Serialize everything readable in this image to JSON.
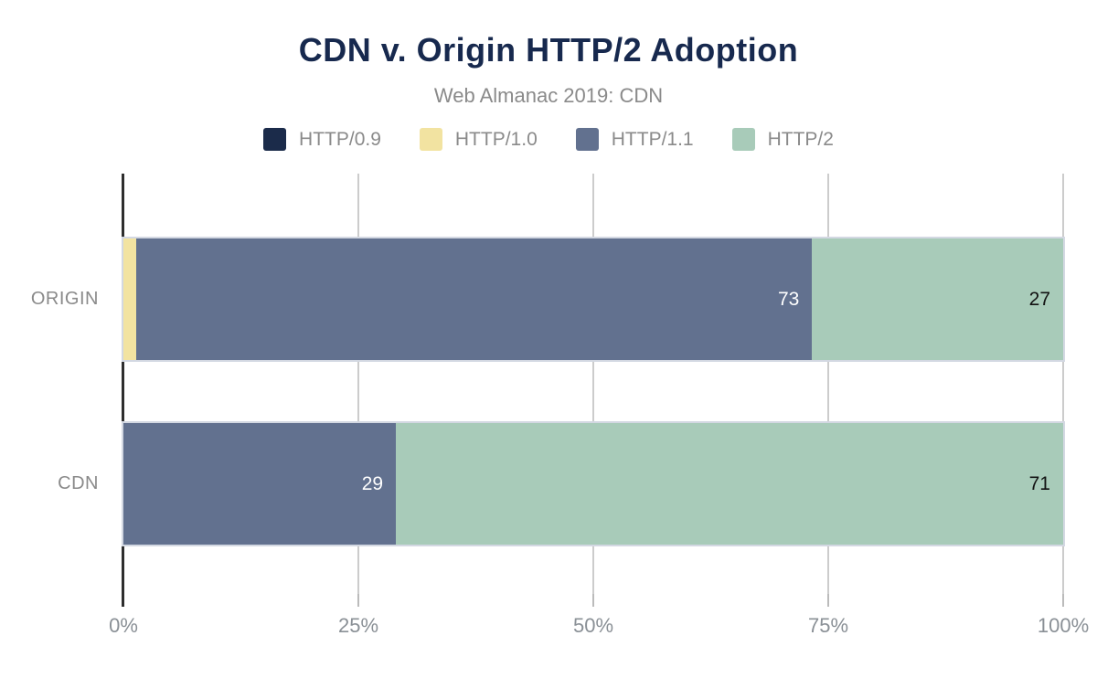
{
  "chart_data": {
    "type": "bar",
    "orientation": "horizontal",
    "stacked": true,
    "title": "CDN v. Origin HTTP/2 Adoption",
    "subtitle": "Web Almanac 2019: CDN",
    "categories": [
      "ORIGIN",
      "CDN"
    ],
    "series": [
      {
        "name": "HTTP/0.9",
        "color": "#1b2b4a",
        "values": [
          0,
          0
        ],
        "labels": [
          "",
          ""
        ],
        "label_color": "#ffffff"
      },
      {
        "name": "HTTP/1.0",
        "color": "#f2e3a1",
        "values": [
          0.3,
          0
        ],
        "labels": [
          "",
          ""
        ],
        "label_color": "#111111"
      },
      {
        "name": "HTTP/1.1",
        "color": "#62718f",
        "values": [
          72.7,
          29
        ],
        "labels": [
          "73",
          "29"
        ],
        "label_color": "#ffffff"
      },
      {
        "name": "HTTP/2",
        "color": "#a8cbb9",
        "values": [
          27,
          71
        ],
        "labels": [
          "27",
          "71"
        ],
        "label_color": "#111111"
      }
    ],
    "x_ticks": [
      {
        "label": "0%",
        "value": 0
      },
      {
        "label": "25%",
        "value": 25
      },
      {
        "label": "50%",
        "value": 50
      },
      {
        "label": "75%",
        "value": 75
      },
      {
        "label": "100%",
        "value": 100
      }
    ],
    "xlim": [
      0,
      100
    ],
    "grid": "vertical",
    "legend_position": "top",
    "colors": {
      "title": "#17294e",
      "subtitle_text": "#8a8a8a",
      "gridline": "#cccccc",
      "axis": "#2e2e2e",
      "bar_border": "#d3d8e2"
    }
  }
}
